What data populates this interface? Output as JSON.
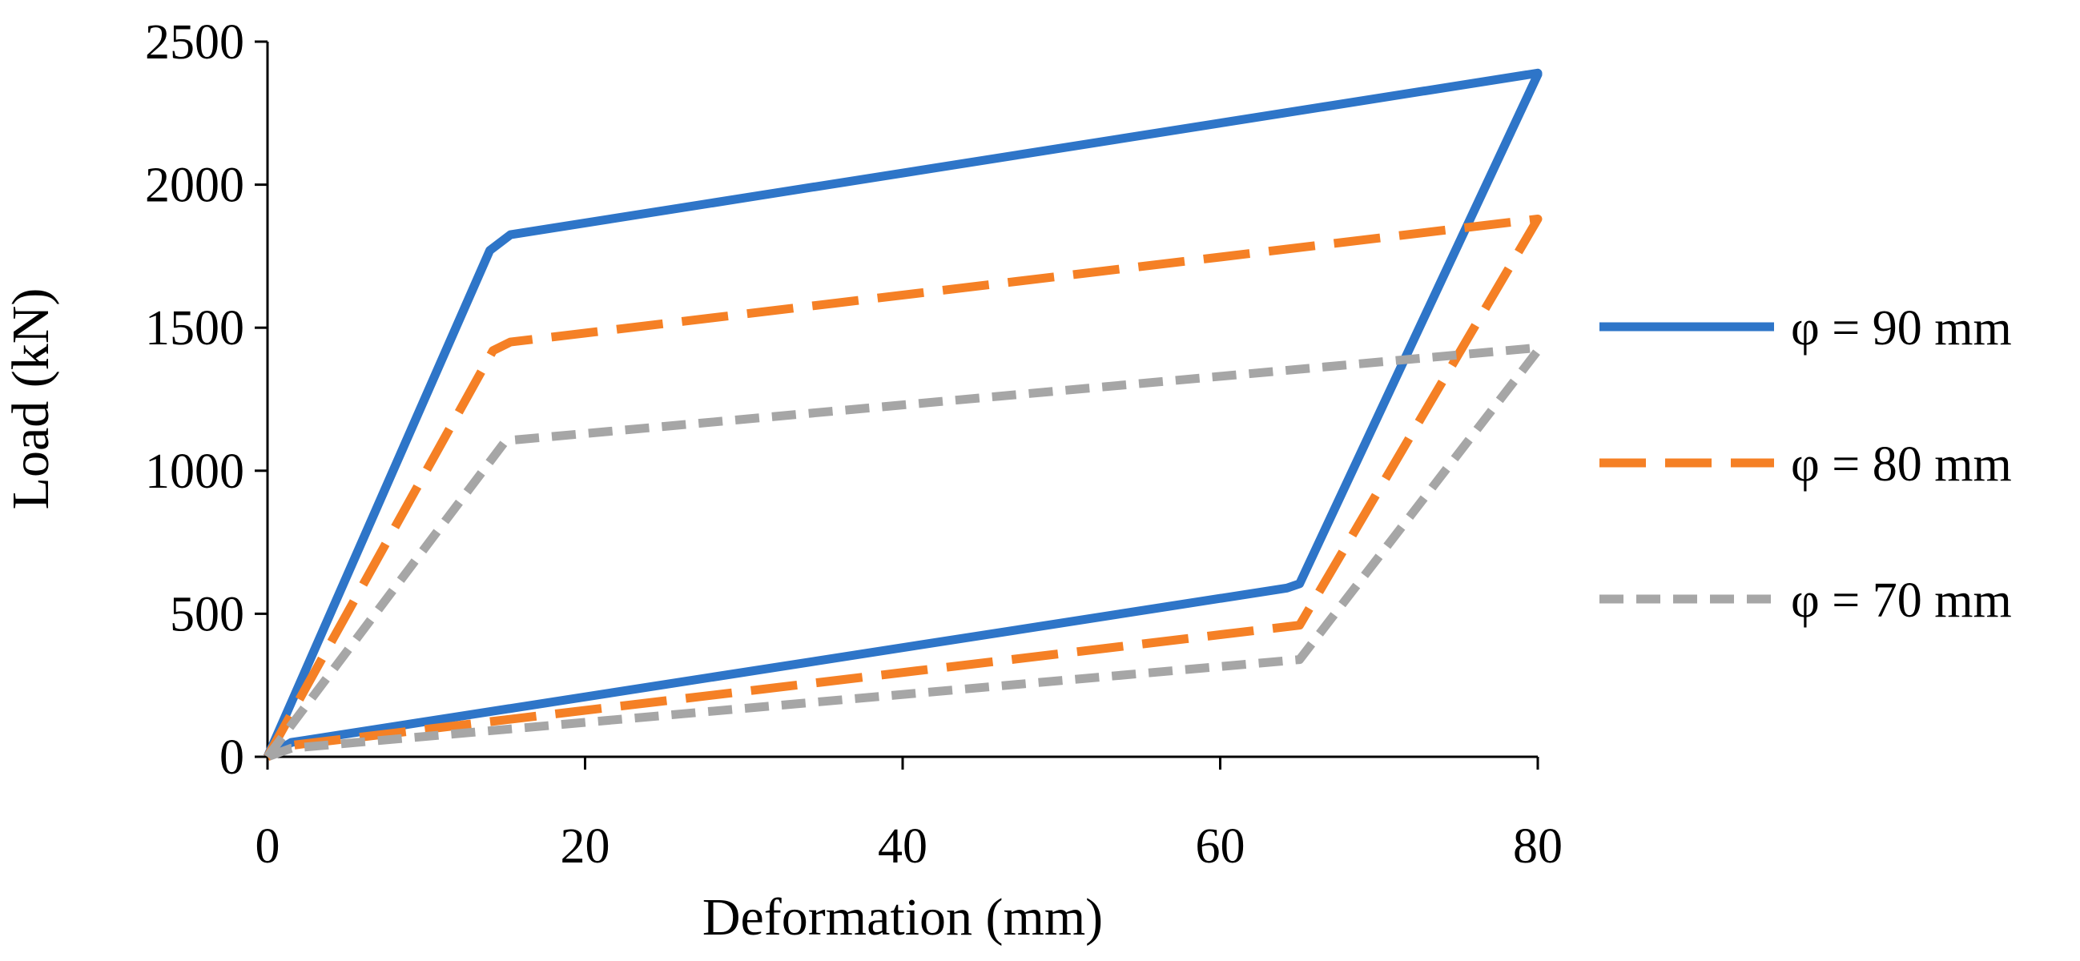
{
  "chart_data": {
    "type": "line",
    "title": "",
    "xlabel": "Deformation (mm)",
    "ylabel": "Load (kN)",
    "xlim": [
      0,
      80
    ],
    "ylim": [
      0,
      2500
    ],
    "xticks": [
      0,
      20,
      40,
      60,
      80
    ],
    "yticks": [
      0,
      500,
      1000,
      1500,
      2000,
      2500
    ],
    "grid": false,
    "legend_position": "right",
    "series": [
      {
        "name": "φ = 90 mm",
        "color": "#2e75c8",
        "style": "solid",
        "x": [
          0,
          14,
          15.3,
          80,
          80,
          65,
          64.2,
          1.5,
          0
        ],
        "y": [
          0,
          1770,
          1825,
          2390,
          2385,
          605,
          590,
          50,
          0
        ]
      },
      {
        "name": "φ = 80 mm",
        "color": "#f58025",
        "style": "long-dash",
        "x": [
          0,
          14.2,
          15.3,
          80,
          80,
          65,
          1.5,
          0
        ],
        "y": [
          0,
          1420,
          1450,
          1880,
          1880,
          460,
          40,
          0
        ]
      },
      {
        "name": "φ = 70 mm",
        "color": "#a6a6a6",
        "style": "short-dash",
        "x": [
          0,
          15,
          80,
          80,
          65,
          1.5,
          0
        ],
        "y": [
          0,
          1105,
          1430,
          1420,
          340,
          30,
          0
        ]
      }
    ]
  }
}
